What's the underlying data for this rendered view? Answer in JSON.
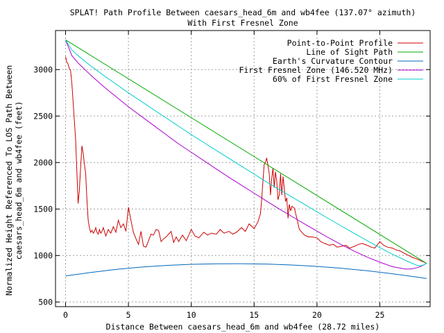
{
  "chart_data": {
    "type": "line",
    "title": "SPLAT! Path Profile Between caesars_head_6m and wb4fee (137.07° azimuth)",
    "subtitle": "With First Fresnel Zone",
    "xlabel": "Distance Between caesars_head_6m and wb4fee (28.72 miles)",
    "ylabel_line1": "Normalized Height Referenced To LOS Path Between",
    "ylabel_line2": "caesars_head_6m and wb4fee (feet)",
    "xlim": [
      -0.8,
      29
    ],
    "ylim": [
      450,
      3420
    ],
    "x_ticks": [
      0,
      5,
      10,
      15,
      20,
      25
    ],
    "y_ticks": [
      500,
      1000,
      1500,
      2000,
      2500,
      3000
    ],
    "grid": true,
    "legend_position": "top-right",
    "series": [
      {
        "name": "Point-to-Point Profile",
        "color": "#cc0000",
        "x": [
          0,
          0.1,
          0.2,
          0.3,
          0.4,
          0.5,
          0.6,
          0.7,
          0.8,
          0.9,
          1.0,
          1.1,
          1.2,
          1.3,
          1.4,
          1.5,
          1.6,
          1.7,
          1.8,
          1.9,
          2.0,
          2.1,
          2.2,
          2.3,
          2.4,
          2.5,
          2.6,
          2.7,
          2.8,
          2.9,
          3.0,
          3.2,
          3.4,
          3.6,
          3.8,
          4.0,
          4.2,
          4.4,
          4.6,
          4.8,
          5.0,
          5.2,
          5.4,
          5.6,
          5.8,
          6.0,
          6.2,
          6.4,
          6.6,
          6.8,
          7.0,
          7.2,
          7.4,
          7.6,
          7.8,
          8.0,
          8.2,
          8.4,
          8.6,
          8.8,
          9.0,
          9.3,
          9.6,
          10.0,
          10.3,
          10.6,
          11.0,
          11.3,
          11.6,
          12.0,
          12.3,
          12.6,
          13.0,
          13.3,
          13.6,
          14.0,
          14.3,
          14.6,
          15.0,
          15.3,
          15.5,
          15.6,
          15.7,
          15.8,
          15.9,
          16.0,
          16.1,
          16.2,
          16.3,
          16.4,
          16.5,
          16.6,
          16.7,
          16.8,
          16.9,
          17.0,
          17.1,
          17.2,
          17.3,
          17.4,
          17.5,
          17.6,
          17.7,
          17.8,
          17.9,
          18.0,
          18.2,
          18.4,
          18.6,
          18.8,
          19.0,
          19.3,
          19.6,
          20.0,
          20.3,
          20.6,
          21.0,
          21.3,
          21.6,
          22.0,
          22.3,
          22.6,
          23.0,
          23.3,
          23.6,
          24.0,
          24.3,
          24.6,
          25.0,
          25.3,
          25.6,
          26.0,
          26.3,
          26.6,
          27.0,
          27.3,
          27.6,
          28.0,
          28.3,
          28.5,
          28.72
        ],
        "y": [
          3140,
          3080,
          3060,
          3010,
          2990,
          2850,
          2650,
          2450,
          2250,
          1900,
          1560,
          1700,
          1950,
          2180,
          2100,
          1980,
          1880,
          1600,
          1380,
          1300,
          1250,
          1270,
          1240,
          1260,
          1300,
          1250,
          1230,
          1280,
          1240,
          1260,
          1300,
          1210,
          1280,
          1240,
          1310,
          1250,
          1380,
          1300,
          1340,
          1260,
          1520,
          1380,
          1250,
          1180,
          1120,
          1260,
          1100,
          1090,
          1160,
          1230,
          1220,
          1280,
          1270,
          1150,
          1180,
          1200,
          1230,
          1260,
          1140,
          1200,
          1150,
          1220,
          1160,
          1280,
          1210,
          1190,
          1250,
          1220,
          1240,
          1230,
          1280,
          1240,
          1260,
          1230,
          1250,
          1300,
          1260,
          1340,
          1290,
          1360,
          1450,
          1600,
          1800,
          1980,
          2000,
          2050,
          1970,
          1880,
          1650,
          1830,
          1940,
          1730,
          1900,
          1800,
          1600,
          1650,
          1880,
          1650,
          1850,
          1720,
          1580,
          1620,
          1400,
          1550,
          1480,
          1530,
          1510,
          1400,
          1280,
          1250,
          1220,
          1200,
          1200,
          1190,
          1150,
          1130,
          1110,
          1120,
          1090,
          1100,
          1110,
          1080,
          1100,
          1120,
          1130,
          1110,
          1090,
          1080,
          1150,
          1110,
          1090,
          1080,
          1060,
          1050,
          1020,
          1000,
          980,
          960,
          940,
          930,
          915
        ]
      },
      {
        "name": "Line of Sight Path",
        "color": "#00aa00",
        "x": [
          0,
          28.72
        ],
        "y": [
          3320,
          915
        ]
      },
      {
        "name": "Earth's Curvature Contour",
        "color": "#0066bb",
        "x": [
          0,
          2,
          4,
          6,
          8,
          10,
          12,
          14,
          16,
          18,
          20,
          22,
          24,
          26,
          28,
          28.72
        ],
        "y": [
          780,
          818,
          850,
          875,
          893,
          905,
          911,
          912,
          908,
          898,
          883,
          862,
          836,
          804,
          767,
          752
        ]
      },
      {
        "name": "First Fresnel Zone (146.520 MHz)",
        "color": "#aa00cc",
        "x": [
          0,
          0.5,
          1,
          2,
          3,
          4,
          5,
          6,
          7,
          8,
          9,
          10,
          11,
          12,
          13,
          14,
          15,
          16,
          17,
          18,
          19,
          20,
          21,
          22,
          23,
          24,
          25,
          26,
          27,
          27.5,
          28,
          28.3,
          28.5,
          28.72
        ],
        "y": [
          3320,
          3150,
          3070,
          2940,
          2820,
          2710,
          2600,
          2500,
          2400,
          2300,
          2200,
          2110,
          2020,
          1930,
          1840,
          1755,
          1670,
          1585,
          1500,
          1420,
          1340,
          1262,
          1185,
          1112,
          1045,
          982,
          928,
          880,
          855,
          855,
          870,
          885,
          900,
          915
        ]
      },
      {
        "name": "60% of First Fresnel Zone",
        "color": "#00cccc",
        "x": [
          0,
          0.5,
          1,
          2,
          3,
          4,
          5,
          6,
          7,
          8,
          9,
          10,
          11,
          12,
          13,
          14,
          15,
          16,
          17,
          18,
          19,
          20,
          21,
          22,
          23,
          24,
          25,
          26,
          27,
          27.5,
          28,
          28.3,
          28.5,
          28.72
        ],
        "y": [
          3320,
          3210,
          3150,
          3040,
          2940,
          2845,
          2750,
          2660,
          2570,
          2480,
          2390,
          2300,
          2215,
          2130,
          2045,
          1960,
          1875,
          1790,
          1710,
          1630,
          1550,
          1470,
          1390,
          1312,
          1235,
          1160,
          1085,
          1015,
          950,
          920,
          892,
          890,
          900,
          915
        ]
      }
    ]
  }
}
